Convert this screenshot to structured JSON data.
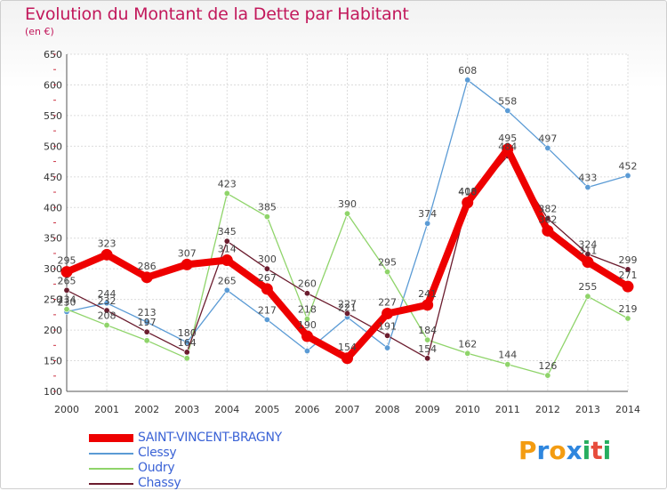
{
  "title": "Evolution du Montant de la Dette par Habitant",
  "subtitle": "(en €)",
  "logo": {
    "letters": [
      "P",
      "r",
      "o",
      "x",
      "i",
      "t",
      "i"
    ],
    "colors": [
      "#f39c12",
      "#2e86de",
      "#f39c12",
      "#2e86de",
      "#27ae60",
      "#e74c3c",
      "#27ae60"
    ]
  },
  "chart_data": {
    "type": "line",
    "x": [
      "2000",
      "2001",
      "2002",
      "2003",
      "2004",
      "2005",
      "2006",
      "2007",
      "2008",
      "2009",
      "2010",
      "2011",
      "2012",
      "2013",
      "2014"
    ],
    "ylim": [
      100,
      650
    ],
    "yticks": [
      "100",
      "150",
      "200",
      "250",
      "300",
      "350",
      "400",
      "450",
      "500",
      "550",
      "600",
      "650"
    ],
    "grid": true,
    "legend_position": "bottom-left",
    "series": [
      {
        "name": "Clessy",
        "color": "#5b9bd5",
        "values": [
          230,
          244,
          213,
          180,
          265,
          217,
          166,
          221,
          171,
          374,
          608,
          558,
          497,
          433,
          452
        ],
        "labels": [
          "230",
          "244",
          "213",
          "180",
          "265",
          "217",
          "",
          "221",
          "",
          "374",
          "608",
          "558",
          "497",
          "433",
          "452"
        ]
      },
      {
        "name": "Oudry",
        "color": "#8fd46a",
        "values": [
          234,
          208,
          183,
          154,
          423,
          385,
          218,
          390,
          295,
          184,
          162,
          144,
          126,
          255,
          219
        ],
        "labels": [
          "234",
          "208",
          "",
          "",
          "423",
          "385",
          "218",
          "390",
          "295",
          "184",
          "162",
          "144",
          "126",
          "255",
          "219"
        ]
      },
      {
        "name": "Chassy",
        "color": "#6b1c2e",
        "values": [
          265,
          232,
          197,
          164,
          345,
          300,
          260,
          227,
          191,
          154,
          410,
          484,
          382,
          324,
          299
        ],
        "labels": [
          "265",
          "232",
          "197",
          "164",
          "345",
          "300",
          "260",
          "227",
          "191",
          "154",
          "410",
          "484",
          "382",
          "324",
          "299"
        ]
      },
      {
        "name": "SAINT-VINCENT-BRAGNY",
        "color": "#ee0000",
        "values": [
          295,
          323,
          286,
          307,
          314,
          267,
          190,
          154,
          227,
          241,
          408,
          495,
          362,
          311,
          271
        ],
        "labels": [
          "295",
          "323",
          "286",
          "307",
          "314",
          "267",
          "190",
          "154",
          "227",
          "241",
          "408",
          "495",
          "362",
          "311",
          "271"
        ]
      }
    ],
    "legend_order": [
      "SAINT-VINCENT-BRAGNY",
      "Clessy",
      "Oudry",
      "Chassy"
    ]
  }
}
